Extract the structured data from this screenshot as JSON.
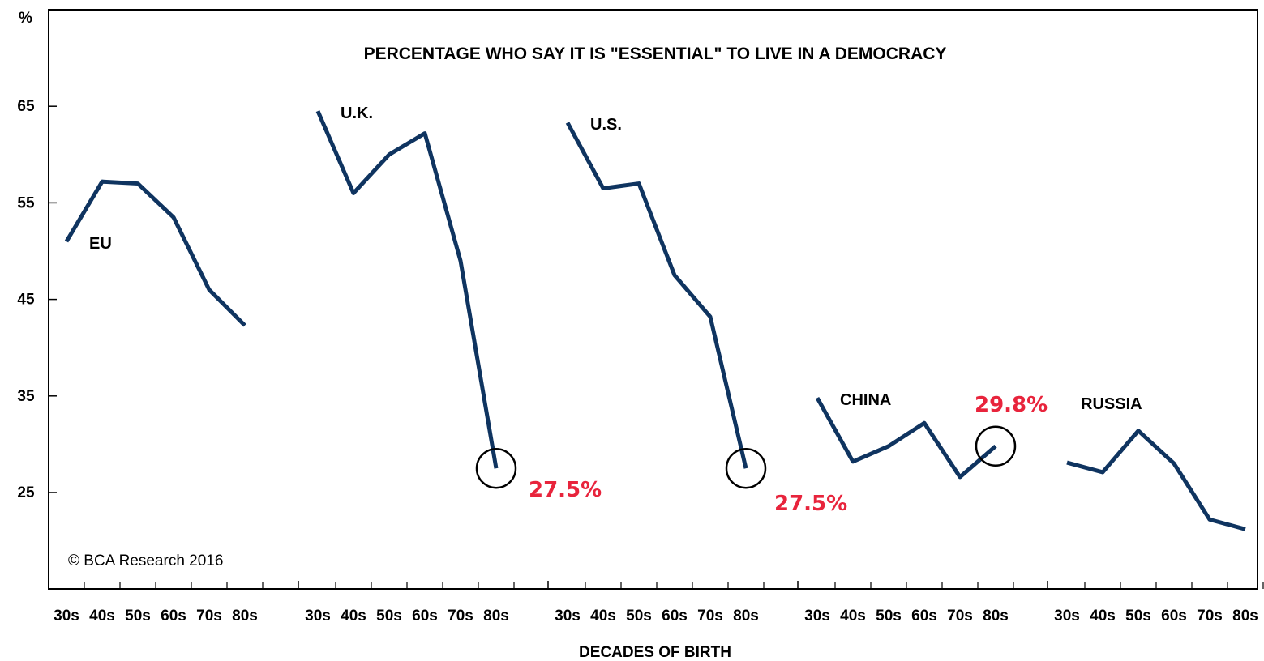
{
  "chart_data": {
    "type": "line",
    "title": "PERCENTAGE WHO SAY IT IS \"ESSENTIAL\" TO LIVE IN A DEMOCRACY",
    "xlabel": "DECADES OF BIRTH",
    "ylabel": "%",
    "ylim": [
      15,
      75
    ],
    "yticks": [
      25,
      35,
      45,
      55,
      65
    ],
    "categories": [
      "30s",
      "40s",
      "50s",
      "60s",
      "70s",
      "80s"
    ],
    "grid": false,
    "series_color": "#0f3460",
    "series": [
      {
        "name": "EU",
        "values": [
          51.0,
          57.2,
          57.0,
          53.5,
          46.0,
          42.3
        ]
      },
      {
        "name": "U.K.",
        "values": [
          64.5,
          56.0,
          60.0,
          62.2,
          49.0,
          27.5
        ]
      },
      {
        "name": "U.S.",
        "values": [
          63.3,
          56.5,
          57.0,
          47.5,
          43.2,
          27.5
        ]
      },
      {
        "name": "CHINA",
        "values": [
          34.8,
          28.2,
          29.8,
          32.2,
          26.6,
          29.8
        ]
      },
      {
        "name": "RUSSIA",
        "values": [
          28.1,
          27.1,
          31.4,
          28.0,
          22.2,
          21.2
        ]
      }
    ],
    "annotations": [
      {
        "series": "U.K.",
        "category": "80s",
        "text": "27.5%",
        "color": "#e8243c"
      },
      {
        "series": "U.S.",
        "category": "80s",
        "text": "27.5%",
        "color": "#e8243c"
      },
      {
        "series": "CHINA",
        "category": "80s",
        "text": "29.8%",
        "color": "#e8243c"
      }
    ],
    "credit": "© BCA Research 2016"
  }
}
